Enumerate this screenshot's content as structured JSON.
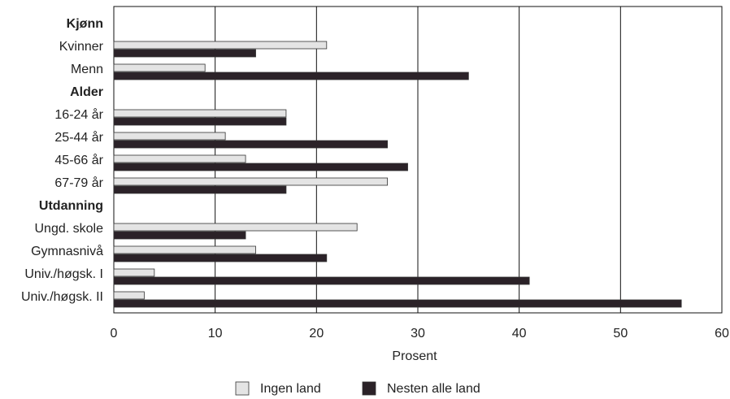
{
  "chart_data": {
    "type": "hbar",
    "categories": [
      "Kjønn",
      "Kvinner",
      "Menn",
      "Alder",
      "16-24 år",
      "25-44 år",
      "45-66 år",
      "67-79 år",
      "Utdanning",
      "Ungd. skole",
      "Gymnasnivå",
      "Univ./høgsk. I",
      "Univ./høgsk. II"
    ],
    "series": [
      {
        "name": "Ingen land",
        "color": "#e4e4e4",
        "values": [
          null,
          21,
          9,
          null,
          17,
          11,
          13,
          27,
          null,
          24,
          14,
          4,
          3
        ]
      },
      {
        "name": "Nesten alle land",
        "color": "#2b2228",
        "values": [
          null,
          14,
          35,
          null,
          17,
          27,
          29,
          17,
          null,
          13,
          21,
          41,
          56
        ]
      }
    ],
    "x_label": "Prosent",
    "xlim": [
      0,
      60
    ],
    "xticks": [
      0,
      10,
      20,
      30,
      40,
      50,
      60
    ],
    "grid": true
  }
}
